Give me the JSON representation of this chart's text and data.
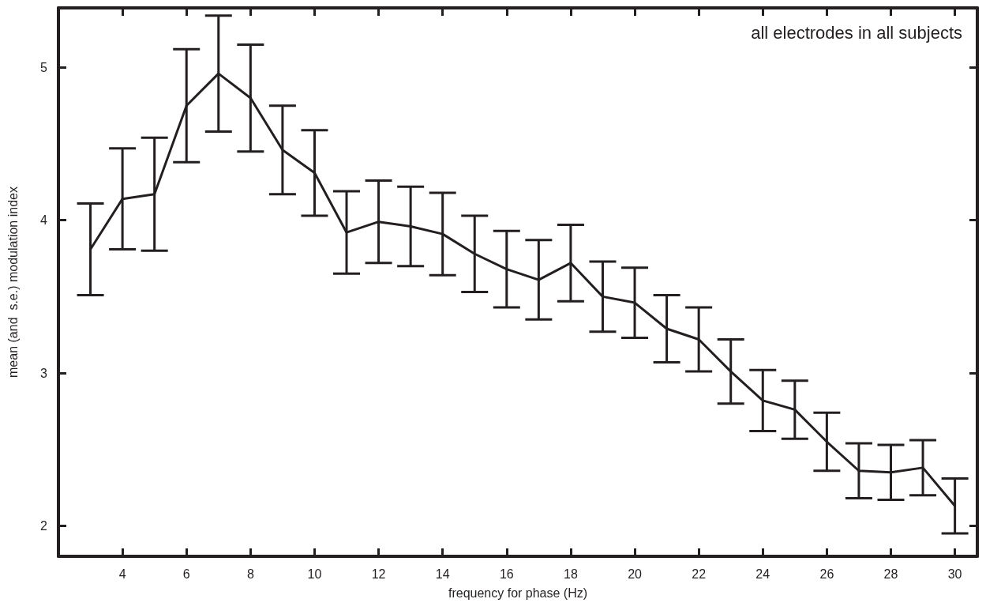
{
  "chart_data": {
    "type": "line",
    "xlabel": "frequency for phase (Hz)",
    "ylabel": "mean (and  s.e.) modulation index",
    "annotations": [
      "all electrodes in all subjects"
    ],
    "x": [
      3,
      4,
      5,
      6,
      7,
      8,
      9,
      10,
      11,
      12,
      13,
      14,
      15,
      16,
      17,
      18,
      19,
      20,
      21,
      22,
      23,
      24,
      25,
      26,
      27,
      28,
      29,
      30
    ],
    "series": [
      {
        "color": "#231f20",
        "values": [
          3.81,
          4.14,
          4.17,
          4.75,
          4.96,
          4.8,
          4.46,
          4.31,
          3.92,
          3.99,
          3.96,
          3.91,
          3.78,
          3.68,
          3.61,
          3.72,
          3.5,
          3.46,
          3.29,
          3.22,
          3.01,
          2.82,
          2.76,
          2.55,
          2.36,
          2.35,
          2.38,
          2.13
        ],
        "errors": [
          0.3,
          0.33,
          0.37,
          0.37,
          0.38,
          0.35,
          0.29,
          0.28,
          0.27,
          0.27,
          0.26,
          0.27,
          0.25,
          0.25,
          0.26,
          0.25,
          0.23,
          0.23,
          0.22,
          0.21,
          0.21,
          0.2,
          0.19,
          0.19,
          0.18,
          0.18,
          0.18,
          0.18
        ]
      }
    ],
    "xlim": [
      2,
      30.7
    ],
    "ylim": [
      1.8,
      5.39
    ],
    "xticks": [
      4,
      6,
      8,
      10,
      12,
      14,
      16,
      18,
      20,
      22,
      24,
      26,
      28,
      30
    ],
    "yticks": [
      2,
      3,
      4,
      5
    ],
    "grid": false,
    "marker": "none",
    "line_style": "solid"
  }
}
